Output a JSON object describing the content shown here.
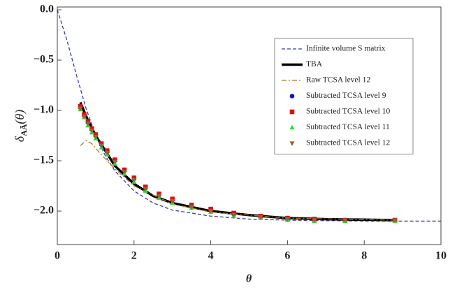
{
  "chart_data": {
    "type": "line",
    "xlabel": "θ",
    "ylabel": {
      "symbol": "δ",
      "subscript": "AĀ",
      "arg": "(θ)"
    },
    "xlim": [
      0,
      10
    ],
    "ylim": [
      -2.333,
      0.028
    ],
    "xticks": [
      0,
      2,
      4,
      6,
      8,
      10
    ],
    "yticks": [
      {
        "value": 0,
        "label": "0.0"
      },
      {
        "value": -0.5,
        "label": "−0.5"
      },
      {
        "value": -1,
        "label": "−1.0"
      },
      {
        "value": -1.5,
        "label": "−1.5"
      },
      {
        "value": -2,
        "label": "−2.0"
      }
    ],
    "legend": "upper-right",
    "series": [
      {
        "name": "Infinite volume S matrix",
        "color": "#3838b0",
        "style": "dashed",
        "x": [
          0,
          0.25,
          0.5,
          0.75,
          1,
          1.25,
          1.5,
          2,
          2.5,
          3,
          4,
          5,
          6,
          8,
          10
        ],
        "values": [
          0,
          -0.3,
          -0.65,
          -0.98,
          -1.25,
          -1.45,
          -1.6,
          -1.8,
          -1.92,
          -1.99,
          -2.05,
          -2.08,
          -2.09,
          -2.1,
          -2.1
        ]
      },
      {
        "name": "TBA",
        "color": "#000000",
        "style": "solid",
        "x": [
          0.6,
          0.8,
          1,
          1.5,
          2,
          2.5,
          3,
          4,
          5,
          6,
          7,
          8.8
        ],
        "values": [
          -0.92,
          -1.1,
          -1.25,
          -1.55,
          -1.73,
          -1.85,
          -1.92,
          -2.0,
          -2.04,
          -2.07,
          -2.08,
          -2.09
        ]
      },
      {
        "name": "Raw TCSA level 12",
        "color": "#b07820",
        "style": "dashdot",
        "x": [
          0.6,
          0.75,
          0.9,
          1.1,
          1.5,
          2,
          3,
          4,
          6,
          8.8
        ],
        "values": [
          -1.35,
          -1.3,
          -1.33,
          -1.42,
          -1.58,
          -1.75,
          -1.93,
          -2.01,
          -2.07,
          -2.09
        ]
      },
      {
        "name": "Subtracted TCSA level 9",
        "color": "#1010d0",
        "style": "circle",
        "x": [
          0.6,
          0.7,
          0.8,
          0.9,
          1.0,
          1.15,
          1.3,
          1.5,
          1.75,
          2.0,
          2.3,
          2.65,
          3.0,
          3.5,
          4.0,
          4.6,
          5.3,
          6.0,
          6.7,
          7.5,
          8.8
        ],
        "values": [
          -0.97,
          -1.05,
          -1.12,
          -1.19,
          -1.25,
          -1.34,
          -1.41,
          -1.5,
          -1.6,
          -1.68,
          -1.77,
          -1.84,
          -1.89,
          -1.95,
          -1.99,
          -2.03,
          -2.06,
          -2.07,
          -2.08,
          -2.09,
          -2.09
        ]
      },
      {
        "name": "Subtracted TCSA level 10",
        "color": "#dd1010",
        "style": "square",
        "x": [
          0.6,
          0.7,
          0.8,
          0.9,
          1.0,
          1.15,
          1.3,
          1.5,
          1.75,
          2.0,
          2.3,
          2.65,
          3.0,
          3.5,
          4.0,
          4.6,
          5.3,
          6.0,
          6.7,
          7.5,
          8.8
        ],
        "values": [
          -0.96,
          -1.04,
          -1.11,
          -1.18,
          -1.24,
          -1.33,
          -1.4,
          -1.49,
          -1.59,
          -1.67,
          -1.76,
          -1.83,
          -1.88,
          -1.94,
          -1.98,
          -2.02,
          -2.05,
          -2.07,
          -2.08,
          -2.09,
          -2.09
        ]
      },
      {
        "name": "Subtracted TCSA level 11",
        "color": "#38d838",
        "style": "triangle",
        "x": [
          0.6,
          0.7,
          0.8,
          0.9,
          1.0,
          1.15,
          1.3,
          1.5,
          1.75,
          2.0,
          2.3,
          2.65,
          3.0,
          3.5,
          4.0,
          4.6,
          5.3,
          6.0,
          6.7,
          7.5,
          8.8
        ],
        "values": [
          -0.99,
          -1.07,
          -1.15,
          -1.22,
          -1.28,
          -1.37,
          -1.44,
          -1.53,
          -1.63,
          -1.71,
          -1.8,
          -1.87,
          -1.92,
          -1.97,
          -2.01,
          -2.05,
          -2.07,
          -2.09,
          -2.1,
          -2.1,
          -2.1
        ]
      },
      {
        "name": "Subtracted TCSA level 12",
        "color": "#8b6a3a",
        "style": "triangle-down",
        "x": [
          0.6,
          0.7,
          0.8,
          0.9,
          1.0,
          1.15,
          1.3,
          1.5,
          1.75,
          2.0,
          2.3,
          2.65,
          3.0,
          3.5,
          4.0,
          4.6,
          5.3,
          6.0,
          6.7,
          7.5,
          8.8
        ],
        "values": [
          -0.98,
          -1.06,
          -1.13,
          -1.2,
          -1.26,
          -1.35,
          -1.42,
          -1.51,
          -1.61,
          -1.69,
          -1.78,
          -1.85,
          -1.9,
          -1.96,
          -2.0,
          -2.04,
          -2.06,
          -2.08,
          -2.09,
          -2.09,
          -2.09
        ]
      }
    ]
  }
}
